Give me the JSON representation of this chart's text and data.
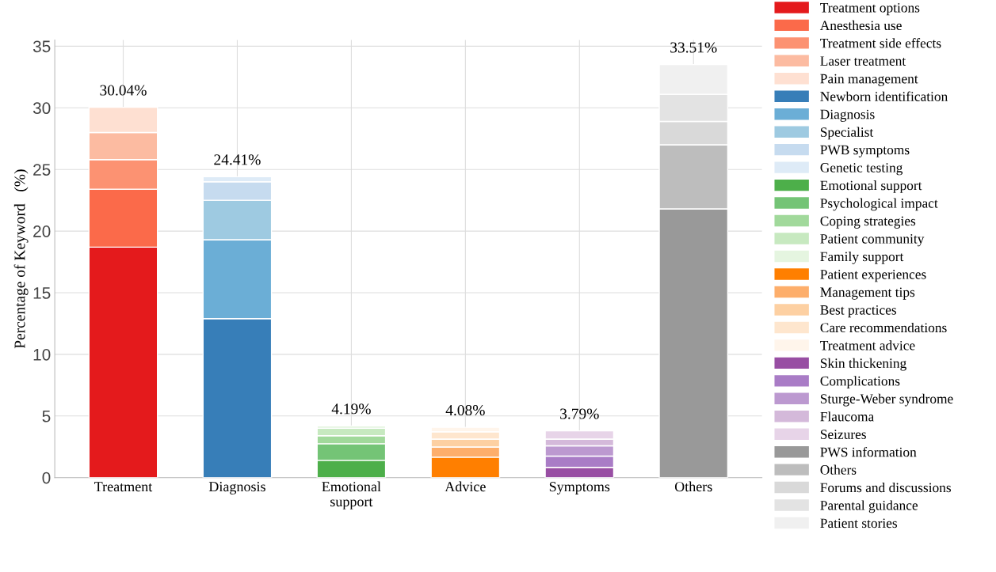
{
  "chart_data": {
    "type": "bar",
    "stacked": true,
    "ylabel": "Percentage of Keyword   (%)",
    "categories": [
      "Treatment",
      "Diagnosis",
      "Emotional\nsupport",
      "Advice",
      "Symptoms",
      "Others"
    ],
    "ylim": [
      0,
      35.5
    ],
    "yticks": [
      0,
      5,
      10,
      15,
      20,
      25,
      30,
      35
    ],
    "grid": true,
    "legend": "right",
    "totals": [
      "30.04%",
      "24.41%",
      "4.19%",
      "4.08%",
      "3.79%",
      "33.51%"
    ],
    "series": [
      {
        "name": "Treatment options",
        "color": "#e41a1c",
        "values": [
          18.7,
          null,
          null,
          null,
          null,
          null
        ]
      },
      {
        "name": "Anesthesia use",
        "color": "#fb6a4a",
        "values": [
          4.7,
          null,
          null,
          null,
          null,
          null
        ]
      },
      {
        "name": "Treatment side effects",
        "color": "#fc9272",
        "values": [
          2.4,
          null,
          null,
          null,
          null,
          null
        ]
      },
      {
        "name": "Laser treatment",
        "color": "#fcbba1",
        "values": [
          2.2,
          null,
          null,
          null,
          null,
          null
        ]
      },
      {
        "name": "Pain management",
        "color": "#fee0d2",
        "values": [
          2.04,
          null,
          null,
          null,
          null,
          null
        ]
      },
      {
        "name": "Newborn identification",
        "color": "#377eb8",
        "values": [
          null,
          12.9,
          null,
          null,
          null,
          null
        ]
      },
      {
        "name": "Diagnosis",
        "color": "#6baed6",
        "values": [
          null,
          6.4,
          null,
          null,
          null,
          null
        ]
      },
      {
        "name": "Specialist",
        "color": "#9ecae1",
        "values": [
          null,
          3.2,
          null,
          null,
          null,
          null
        ]
      },
      {
        "name": "PWB symptoms",
        "color": "#c6dbef",
        "values": [
          null,
          1.5,
          null,
          null,
          null,
          null
        ]
      },
      {
        "name": "Genetic testing",
        "color": "#deebf7",
        "values": [
          null,
          0.41,
          null,
          null,
          null,
          null
        ]
      },
      {
        "name": "Emotional support",
        "color": "#4daf4a",
        "values": [
          null,
          null,
          1.4,
          null,
          null,
          null
        ]
      },
      {
        "name": "Psychological impact",
        "color": "#74c476",
        "values": [
          null,
          null,
          1.35,
          null,
          null,
          null
        ]
      },
      {
        "name": "Coping strategies",
        "color": "#a1d99b",
        "values": [
          null,
          null,
          0.65,
          null,
          null,
          null
        ]
      },
      {
        "name": "Patient community",
        "color": "#c7e9c0",
        "values": [
          null,
          null,
          0.6,
          null,
          null,
          null
        ]
      },
      {
        "name": "Family support",
        "color": "#e5f5e0",
        "values": [
          null,
          null,
          0.19,
          null,
          null,
          null
        ]
      },
      {
        "name": "Patient experiences",
        "color": "#ff7f00",
        "values": [
          null,
          null,
          null,
          1.66,
          null,
          null
        ]
      },
      {
        "name": "Management tips",
        "color": "#fdae6b",
        "values": [
          null,
          null,
          null,
          0.82,
          null,
          null
        ]
      },
      {
        "name": "Best practices",
        "color": "#fdd0a2",
        "values": [
          null,
          null,
          null,
          0.65,
          null,
          null
        ]
      },
      {
        "name": "Care recommendations",
        "color": "#fee6ce",
        "values": [
          null,
          null,
          null,
          0.59,
          null,
          null
        ]
      },
      {
        "name": "Treatment advice",
        "color": "#fff5eb",
        "values": [
          null,
          null,
          null,
          0.36,
          null,
          null
        ]
      },
      {
        "name": "Skin thickening",
        "color": "#984ea3",
        "values": [
          null,
          null,
          null,
          null,
          0.83,
          null
        ]
      },
      {
        "name": "Complications",
        "color": "#a97cc6",
        "values": [
          null,
          null,
          null,
          null,
          0.92,
          null
        ]
      },
      {
        "name": "Sturge-Weber syndrome",
        "color": "#bc99d0",
        "values": [
          null,
          null,
          null,
          null,
          0.83,
          null
        ]
      },
      {
        "name": "Flaucoma",
        "color": "#d4b9da",
        "values": [
          null,
          null,
          null,
          null,
          0.55,
          null
        ]
      },
      {
        "name": "Seizures",
        "color": "#e7d4e8",
        "values": [
          null,
          null,
          null,
          null,
          0.66,
          null
        ]
      },
      {
        "name": "PWS information",
        "color": "#999999",
        "values": [
          null,
          null,
          null,
          null,
          null,
          21.8
        ]
      },
      {
        "name": "Others",
        "color": "#bdbdbd",
        "values": [
          null,
          null,
          null,
          null,
          null,
          5.2
        ]
      },
      {
        "name": "Forums and discussions",
        "color": "#d9d9d9",
        "values": [
          null,
          null,
          null,
          null,
          null,
          1.9
        ]
      },
      {
        "name": "Parental guidance",
        "color": "#e3e3e3",
        "values": [
          null,
          null,
          null,
          null,
          null,
          2.2
        ]
      },
      {
        "name": "Patient stories",
        "color": "#f0f0f0",
        "values": [
          null,
          null,
          null,
          null,
          null,
          2.41
        ]
      }
    ]
  }
}
